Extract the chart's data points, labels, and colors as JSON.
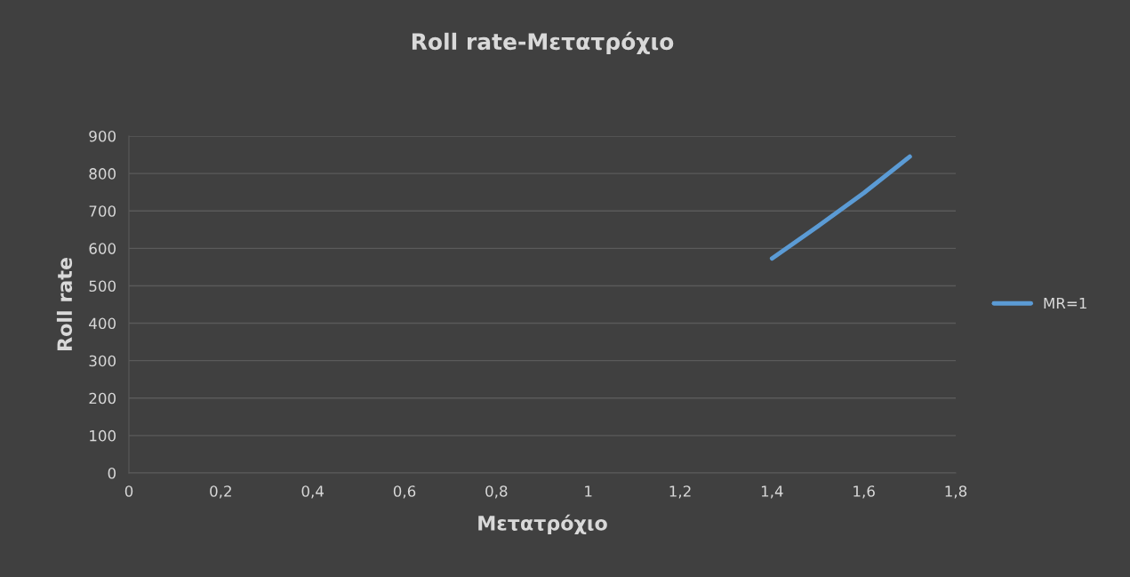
{
  "chart_data": {
    "type": "line",
    "title": "Roll rate-Μετατρόχιο",
    "xlabel": "Μετατρόχιο",
    "ylabel": "Roll rate",
    "x": [
      1.4,
      1.5,
      1.6,
      1.7
    ],
    "series": [
      {
        "name": "MR=1",
        "color": "#5b9bd5",
        "values": [
          573,
          659,
          748,
          845
        ]
      }
    ],
    "xlim": [
      0,
      1.8
    ],
    "xticks": [
      0,
      {
        "value": 0.2,
        "label": "0,2"
      },
      {
        "value": 0.4,
        "label": "0,4"
      },
      {
        "value": 0.6,
        "label": "0,6"
      },
      {
        "value": 0.8,
        "label": "0,8"
      },
      1,
      {
        "value": 1.2,
        "label": "1,2"
      },
      {
        "value": 1.4,
        "label": "1,4"
      },
      {
        "value": 1.6,
        "label": "1,6"
      },
      {
        "value": 1.8,
        "label": "1,8"
      }
    ],
    "ylim": [
      0,
      900
    ],
    "yticks": [
      0,
      100,
      200,
      300,
      400,
      500,
      600,
      700,
      800,
      900
    ],
    "grid": "y",
    "legend": "right",
    "marker": "none",
    "line_style": "solid"
  }
}
